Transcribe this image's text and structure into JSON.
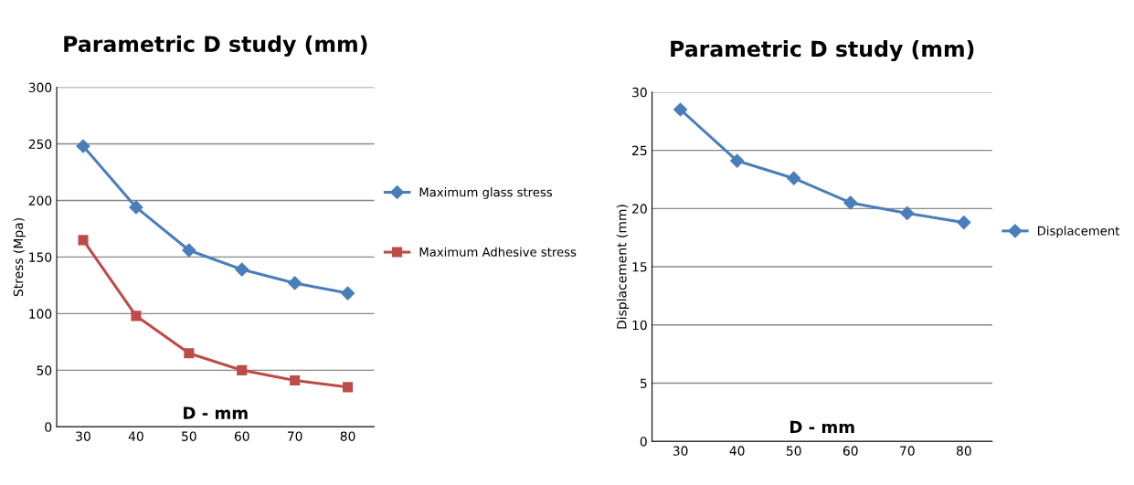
{
  "chart_data": [
    {
      "type": "line",
      "title": "Parametric D study (mm)",
      "xlabel": "D - mm",
      "ylabel": "Stress (Mpa)",
      "categories": [
        "30",
        "40",
        "50",
        "60",
        "70",
        "80"
      ],
      "ylim": [
        0,
        300
      ],
      "yticks": [
        0,
        50,
        100,
        150,
        200,
        250,
        300
      ],
      "grid": "y",
      "legend": "right",
      "series": [
        {
          "name": "Maximum glass stress",
          "color": "#4a7ebb",
          "marker": "diamond",
          "values": [
            248,
            194,
            156,
            139,
            127,
            118
          ]
        },
        {
          "name": "Maximum Adhesive stress",
          "color": "#be4b48",
          "marker": "square",
          "values": [
            165,
            98,
            65,
            50,
            41,
            35
          ]
        }
      ]
    },
    {
      "type": "line",
      "title": "Parametric D study (mm)",
      "xlabel": "D - mm",
      "ylabel": "Displacement (mm)",
      "categories": [
        "30",
        "40",
        "50",
        "60",
        "70",
        "80"
      ],
      "ylim": [
        0,
        30
      ],
      "yticks": [
        0,
        5,
        10,
        15,
        20,
        25,
        30
      ],
      "grid": "y",
      "legend": "right",
      "series": [
        {
          "name": "Displacement",
          "color": "#4a7ebb",
          "marker": "diamond",
          "values": [
            28.5,
            24.1,
            22.6,
            20.5,
            19.6,
            18.8
          ]
        }
      ]
    }
  ]
}
